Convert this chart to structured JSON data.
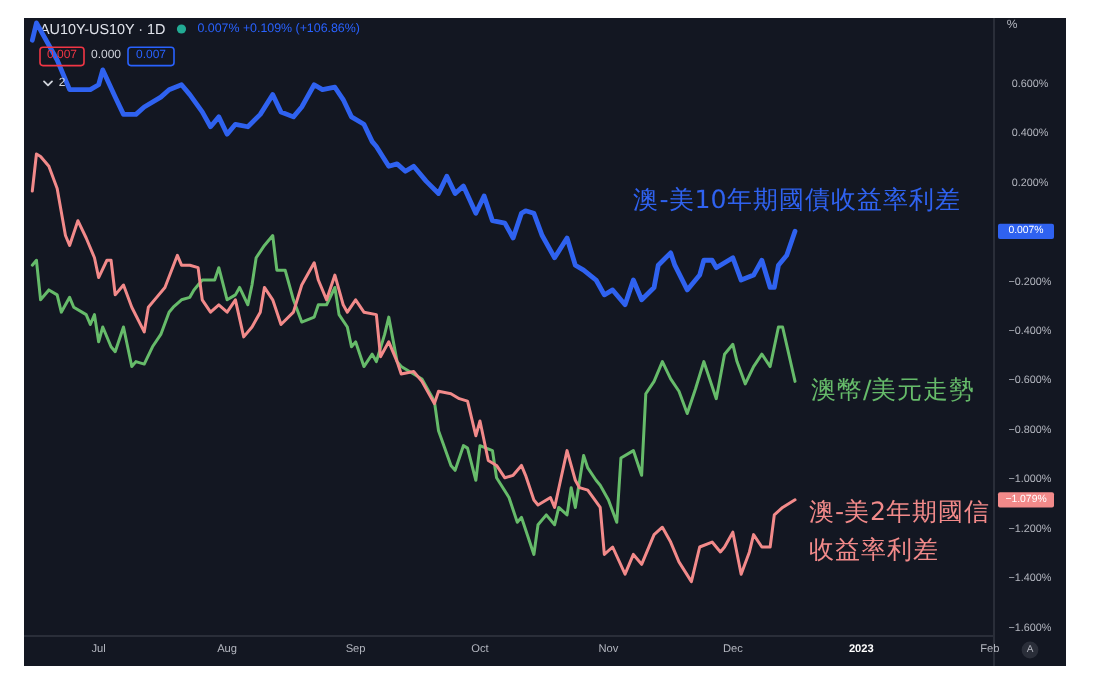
{
  "chart_data": {
    "type": "line",
    "title": "AU10Y-US10Y · 1D",
    "subtitle": "0.007% +0.109% (+106.86%)",
    "xlim": [
      "2022-06-13",
      "2023-02-02"
    ],
    "xticks": [
      {
        "value": "2022-07-01",
        "label": "Jul"
      },
      {
        "value": "2022-08-01",
        "label": "Aug"
      },
      {
        "value": "2022-09-01",
        "label": "Sep"
      },
      {
        "value": "2022-10-01",
        "label": "Oct"
      },
      {
        "value": "2022-11-01",
        "label": "Nov"
      },
      {
        "value": "2022-12-01",
        "label": "Dec"
      },
      {
        "value": "2023-01-01",
        "label": "2023"
      },
      {
        "value": "2023-02-01",
        "label": "Feb"
      }
    ],
    "ylim": [
      -1.63,
      0.87
    ],
    "yticks": [
      {
        "value": 0.6,
        "label": "0.600%"
      },
      {
        "value": 0.4,
        "label": "0.400%"
      },
      {
        "value": 0.2,
        "label": "0.200%"
      },
      {
        "value": -0.2,
        "label": "−0.200%"
      },
      {
        "value": -0.4,
        "label": "−0.400%"
      },
      {
        "value": -0.6,
        "label": "−0.600%"
      },
      {
        "value": -0.8,
        "label": "−0.800%"
      },
      {
        "value": -1.0,
        "label": "−1.000%"
      },
      {
        "value": -1.2,
        "label": "−1.200%"
      },
      {
        "value": -1.4,
        "label": "−1.400%"
      },
      {
        "value": -1.6,
        "label": "−1.600%"
      }
    ],
    "series": [
      {
        "name": "澳-美10年期國債收益率利差",
        "color": "#2f62f0",
        "x": [
          "2022-06-15",
          "2022-06-16",
          "2022-06-21",
          "2022-06-24",
          "2022-06-29",
          "2022-07-01",
          "2022-07-02",
          "2022-07-05",
          "2022-07-07",
          "2022-07-10",
          "2022-07-12",
          "2022-07-16",
          "2022-07-18",
          "2022-07-21",
          "2022-07-23",
          "2022-07-26",
          "2022-07-28",
          "2022-07-30",
          "2022-08-01",
          "2022-08-03",
          "2022-08-06",
          "2022-08-09",
          "2022-08-12",
          "2022-08-14",
          "2022-08-17",
          "2022-08-19",
          "2022-08-22",
          "2022-08-24",
          "2022-08-27",
          "2022-08-29",
          "2022-08-31",
          "2022-09-03",
          "2022-09-05",
          "2022-09-06",
          "2022-09-09",
          "2022-09-11",
          "2022-09-13",
          "2022-09-15",
          "2022-09-18",
          "2022-09-21",
          "2022-09-23",
          "2022-09-25",
          "2022-09-27",
          "2022-09-30",
          "2022-10-02",
          "2022-10-04",
          "2022-10-07",
          "2022-10-09",
          "2022-10-11",
          "2022-10-12",
          "2022-10-14",
          "2022-10-16",
          "2022-10-19",
          "2022-10-22",
          "2022-10-24",
          "2022-10-26",
          "2022-10-29",
          "2022-10-31",
          "2022-11-02",
          "2022-11-05",
          "2022-11-07",
          "2022-11-09",
          "2022-11-12",
          "2022-11-13",
          "2022-11-16",
          "2022-11-17",
          "2022-11-20",
          "2022-11-23",
          "2022-11-24",
          "2022-11-26",
          "2022-11-27",
          "2022-11-28",
          "2022-12-01",
          "2022-12-03",
          "2022-12-06",
          "2022-12-08",
          "2022-12-10",
          "2022-12-11",
          "2022-12-12",
          "2022-12-14",
          "2022-12-16"
        ],
        "values": [
          0.78,
          0.85,
          0.7,
          0.58,
          0.58,
          0.6,
          0.66,
          0.55,
          0.48,
          0.48,
          0.51,
          0.55,
          0.58,
          0.6,
          0.56,
          0.49,
          0.43,
          0.47,
          0.4,
          0.44,
          0.43,
          0.48,
          0.56,
          0.49,
          0.47,
          0.51,
          0.6,
          0.58,
          0.59,
          0.54,
          0.47,
          0.44,
          0.37,
          0.35,
          0.27,
          0.28,
          0.25,
          0.27,
          0.21,
          0.16,
          0.23,
          0.16,
          0.19,
          0.08,
          0.15,
          0.05,
          0.04,
          -0.02,
          0.08,
          0.09,
          0.08,
          -0.01,
          -0.1,
          -0.02,
          -0.13,
          -0.15,
          -0.19,
          -0.25,
          -0.23,
          -0.29,
          -0.19,
          -0.27,
          -0.22,
          -0.13,
          -0.08,
          -0.13,
          -0.23,
          -0.17,
          -0.11,
          -0.11,
          -0.14,
          -0.13,
          -0.1,
          -0.19,
          -0.17,
          -0.11,
          -0.22,
          -0.22,
          -0.13,
          -0.09,
          0.007
        ]
      },
      {
        "name": "澳幣/美元走勢",
        "color": "#66bb6a",
        "x": [
          "2022-06-15",
          "2022-06-16",
          "2022-06-17",
          "2022-06-19",
          "2022-06-21",
          "2022-06-22",
          "2022-06-24",
          "2022-06-25",
          "2022-06-28",
          "2022-06-29",
          "2022-06-30",
          "2022-07-01",
          "2022-07-02",
          "2022-07-04",
          "2022-07-05",
          "2022-07-07",
          "2022-07-09",
          "2022-07-10",
          "2022-07-12",
          "2022-07-14",
          "2022-07-16",
          "2022-07-18",
          "2022-07-19",
          "2022-07-21",
          "2022-07-23",
          "2022-07-24",
          "2022-07-26",
          "2022-07-27",
          "2022-07-29",
          "2022-07-30",
          "2022-08-01",
          "2022-08-03",
          "2022-08-04",
          "2022-08-06",
          "2022-08-07",
          "2022-08-08",
          "2022-08-10",
          "2022-08-12",
          "2022-08-13",
          "2022-08-15",
          "2022-08-17",
          "2022-08-19",
          "2022-08-22",
          "2022-08-23",
          "2022-08-25",
          "2022-08-27",
          "2022-08-28",
          "2022-08-30",
          "2022-08-31",
          "2022-09-01",
          "2022-09-03",
          "2022-09-05",
          "2022-09-06",
          "2022-09-08",
          "2022-09-09",
          "2022-09-11",
          "2022-09-12",
          "2022-09-15",
          "2022-09-17",
          "2022-09-20",
          "2022-09-21",
          "2022-09-24",
          "2022-09-25",
          "2022-09-27",
          "2022-09-28",
          "2022-09-30",
          "2022-10-01",
          "2022-10-04",
          "2022-10-05",
          "2022-10-08",
          "2022-10-10",
          "2022-10-11",
          "2022-10-13",
          "2022-10-14",
          "2022-10-15",
          "2022-10-17",
          "2022-10-19",
          "2022-10-20",
          "2022-10-22",
          "2022-10-23",
          "2022-10-24",
          "2022-10-26",
          "2022-10-27",
          "2022-10-29",
          "2022-10-30",
          "2022-11-01",
          "2022-11-03",
          "2022-11-04",
          "2022-11-07",
          "2022-11-09",
          "2022-11-10",
          "2022-11-12",
          "2022-11-14",
          "2022-11-16",
          "2022-11-18",
          "2022-11-20",
          "2022-11-22",
          "2022-11-24",
          "2022-11-27",
          "2022-11-29",
          "2022-12-01",
          "2022-12-02",
          "2022-12-04",
          "2022-12-06",
          "2022-12-08",
          "2022-12-10",
          "2022-12-12",
          "2022-12-13",
          "2022-12-16"
        ],
        "values": [
          -0.13,
          -0.11,
          -0.27,
          -0.23,
          -0.25,
          -0.32,
          -0.26,
          -0.3,
          -0.33,
          -0.37,
          -0.33,
          -0.44,
          -0.38,
          -0.46,
          -0.48,
          -0.38,
          -0.54,
          -0.52,
          -0.53,
          -0.46,
          -0.41,
          -0.32,
          -0.3,
          -0.27,
          -0.26,
          -0.23,
          -0.19,
          -0.19,
          -0.19,
          -0.14,
          -0.27,
          -0.25,
          -0.22,
          -0.29,
          -0.21,
          -0.1,
          -0.05,
          -0.01,
          -0.15,
          -0.15,
          -0.27,
          -0.36,
          -0.34,
          -0.29,
          -0.29,
          -0.22,
          -0.33,
          -0.38,
          -0.46,
          -0.44,
          -0.54,
          -0.49,
          -0.52,
          -0.41,
          -0.34,
          -0.52,
          -0.54,
          -0.57,
          -0.59,
          -0.68,
          -0.8,
          -0.94,
          -0.96,
          -0.86,
          -0.87,
          -1.0,
          -0.86,
          -0.88,
          -0.99,
          -1.07,
          -1.17,
          -1.15,
          -1.25,
          -1.3,
          -1.18,
          -1.14,
          -1.18,
          -1.11,
          -1.14,
          -1.03,
          -1.11,
          -0.9,
          -0.95,
          -1.0,
          -1.02,
          -1.08,
          -1.17,
          -0.91,
          -0.88,
          -0.98,
          -0.65,
          -0.6,
          -0.52,
          -0.59,
          -0.64,
          -0.73,
          -0.63,
          -0.52,
          -0.67,
          -0.49,
          -0.45,
          -0.52,
          -0.61,
          -0.54,
          -0.49,
          -0.54,
          -0.38,
          -0.38,
          -0.6
        ]
      },
      {
        "name": "澳-美2年期國信收益率利差",
        "color": "#f28a8a",
        "x": [
          "2022-06-15",
          "2022-06-16",
          "2022-06-17",
          "2022-06-19",
          "2022-06-21",
          "2022-06-23",
          "2022-06-24",
          "2022-06-26",
          "2022-06-28",
          "2022-06-30",
          "2022-07-01",
          "2022-07-03",
          "2022-07-04",
          "2022-07-05",
          "2022-07-07",
          "2022-07-09",
          "2022-07-12",
          "2022-07-13",
          "2022-07-15",
          "2022-07-17",
          "2022-07-20",
          "2022-07-21",
          "2022-07-23",
          "2022-07-25",
          "2022-07-26",
          "2022-07-28",
          "2022-07-30",
          "2022-08-01",
          "2022-08-03",
          "2022-08-05",
          "2022-08-07",
          "2022-08-09",
          "2022-08-10",
          "2022-08-12",
          "2022-08-14",
          "2022-08-17",
          "2022-08-19",
          "2022-08-22",
          "2022-08-23",
          "2022-08-25",
          "2022-08-27",
          "2022-08-29",
          "2022-08-30",
          "2022-09-01",
          "2022-09-03",
          "2022-09-06",
          "2022-09-07",
          "2022-09-09",
          "2022-09-11",
          "2022-09-12",
          "2022-09-15",
          "2022-09-17",
          "2022-09-20",
          "2022-09-21",
          "2022-09-24",
          "2022-09-26",
          "2022-09-28",
          "2022-09-30",
          "2022-10-01",
          "2022-10-03",
          "2022-10-05",
          "2022-10-07",
          "2022-10-09",
          "2022-10-11",
          "2022-10-12",
          "2022-10-14",
          "2022-10-15",
          "2022-10-18",
          "2022-10-19",
          "2022-10-22",
          "2022-10-24",
          "2022-10-25",
          "2022-10-27",
          "2022-10-30",
          "2022-10-31",
          "2022-11-02",
          "2022-11-05",
          "2022-11-07",
          "2022-11-09",
          "2022-11-12",
          "2022-11-14",
          "2022-11-16",
          "2022-11-18",
          "2022-11-21",
          "2022-11-23",
          "2022-11-26",
          "2022-11-28",
          "2022-11-29",
          "2022-12-01",
          "2022-12-03",
          "2022-12-05",
          "2022-12-06",
          "2022-12-08",
          "2022-12-10",
          "2022-12-11",
          "2022-12-13",
          "2022-12-16"
        ],
        "values": [
          0.17,
          0.32,
          0.31,
          0.27,
          0.18,
          -0.01,
          -0.05,
          0.05,
          -0.02,
          -0.1,
          -0.18,
          -0.11,
          -0.11,
          -0.25,
          -0.21,
          -0.3,
          -0.4,
          -0.3,
          -0.26,
          -0.22,
          -0.09,
          -0.13,
          -0.13,
          -0.14,
          -0.27,
          -0.32,
          -0.29,
          -0.32,
          -0.27,
          -0.42,
          -0.38,
          -0.32,
          -0.22,
          -0.27,
          -0.37,
          -0.32,
          -0.21,
          -0.12,
          -0.19,
          -0.27,
          -0.17,
          -0.29,
          -0.32,
          -0.27,
          -0.32,
          -0.33,
          -0.5,
          -0.44,
          -0.52,
          -0.57,
          -0.56,
          -0.6,
          -0.69,
          -0.64,
          -0.65,
          -0.67,
          -0.68,
          -0.82,
          -0.76,
          -0.92,
          -0.94,
          -0.99,
          -0.98,
          -0.94,
          -0.98,
          -1.08,
          -1.1,
          -1.07,
          -1.11,
          -0.88,
          -1.0,
          -1.03,
          -1.04,
          -1.11,
          -1.3,
          -1.27,
          -1.38,
          -1.3,
          -1.34,
          -1.22,
          -1.19,
          -1.25,
          -1.33,
          -1.41,
          -1.27,
          -1.25,
          -1.29,
          -1.27,
          -1.21,
          -1.38,
          -1.29,
          -1.22,
          -1.27,
          -1.27,
          -1.14,
          -1.11,
          -1.079
        ]
      }
    ],
    "annotations": [
      "0.007%",
      "−1.079%",
      "0.007",
      "0.000",
      "0.007",
      "2",
      "%",
      "A"
    ]
  }
}
